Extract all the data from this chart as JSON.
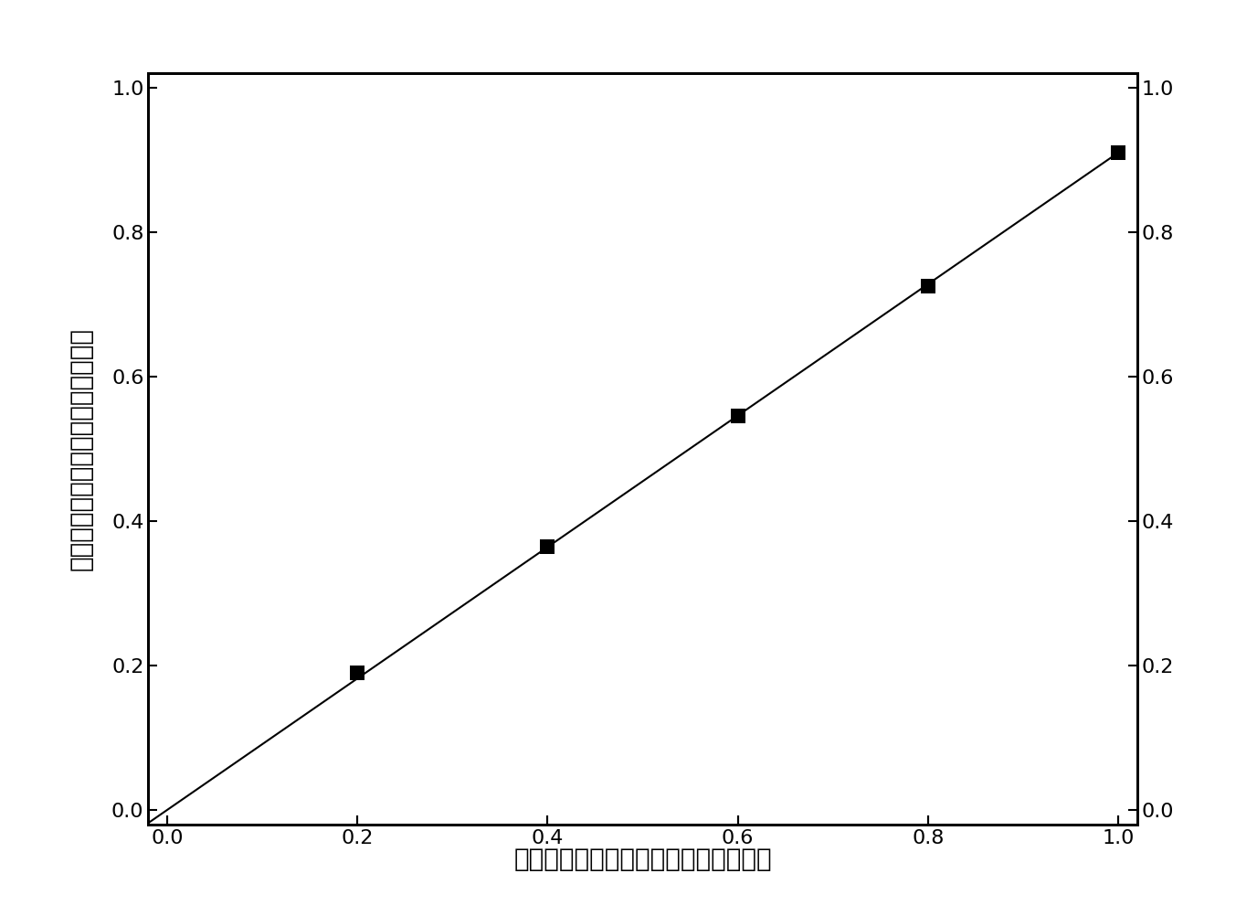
{
  "x_data": [
    0.2,
    0.4,
    0.6,
    0.8,
    1.0
  ],
  "y_data": [
    0.19,
    0.365,
    0.545,
    0.725,
    0.91
  ],
  "line_x": [
    -0.02,
    1.0
  ],
  "line_y": [
    -0.018,
    0.91
  ],
  "x_ticks": [
    0.0,
    0.2,
    0.4,
    0.6,
    0.8,
    1.0
  ],
  "y_ticks": [
    0.0,
    0.2,
    0.4,
    0.6,
    0.8,
    1.0
  ],
  "xlim": [
    -0.02,
    1.02
  ],
  "ylim": [
    -0.02,
    1.02
  ],
  "xlabel": "紫外可见分光光度计所得相对信号强度",
  "ylabel": "模块化光度分析仪所得相对信号强度",
  "marker_color": "#000000",
  "line_color": "#000000",
  "background_color": "#ffffff",
  "tick_fontsize": 16,
  "label_fontsize": 20,
  "marker_size": 11,
  "line_width": 1.5,
  "spine_linewidth": 2.0
}
